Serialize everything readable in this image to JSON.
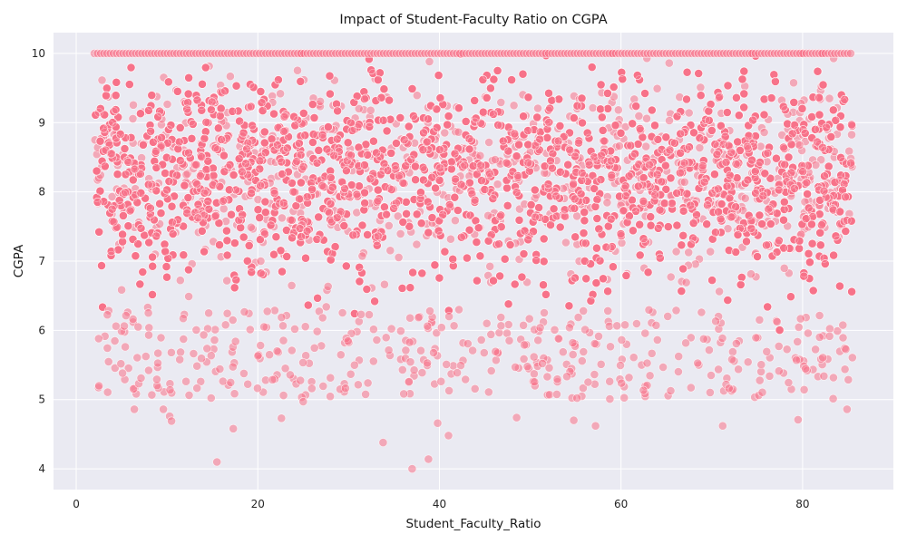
{
  "chart_data": {
    "type": "scatter",
    "title": "Impact of Student-Faculty Ratio on CGPA",
    "xlabel": "Student_Faculty_Ratio",
    "ylabel": "CGPA",
    "xlim": [
      -2.5,
      90
    ],
    "ylim": [
      3.7,
      10.3
    ],
    "xticks": [
      0,
      20,
      40,
      60,
      80
    ],
    "yticks": [
      4,
      5,
      6,
      7,
      8,
      9,
      10
    ],
    "grid": true,
    "legend": "none",
    "colors": {
      "point": "#f77189",
      "point_edge": "#ffffff",
      "background": "#eaeaf2",
      "grid": "#ffffff"
    },
    "series": [
      {
        "x_range": [
          2,
          85.5
        ],
        "y_range": [
          4.0,
          10.0
        ],
        "y_cap": 10.0,
        "dense_band": [
          6.0,
          10.0
        ],
        "notable_points": [
          {
            "x": 15.5,
            "y": 4.1
          },
          {
            "x": 37,
            "y": 4.0
          },
          {
            "x": 38.8,
            "y": 4.14
          },
          {
            "x": 33.8,
            "y": 4.38
          },
          {
            "x": 41,
            "y": 4.48
          },
          {
            "x": 39.8,
            "y": 4.66
          },
          {
            "x": 22.6,
            "y": 4.73
          },
          {
            "x": 17.3,
            "y": 4.58
          },
          {
            "x": 71.2,
            "y": 4.62
          },
          {
            "x": 79.5,
            "y": 4.71
          },
          {
            "x": 84.9,
            "y": 4.86
          },
          {
            "x": 57.2,
            "y": 4.62
          },
          {
            "x": 54.8,
            "y": 4.7
          },
          {
            "x": 48.5,
            "y": 4.74
          },
          {
            "x": 10.3,
            "y": 4.76
          },
          {
            "x": 10.5,
            "y": 4.69
          },
          {
            "x": 6.4,
            "y": 4.86
          },
          {
            "x": 9.6,
            "y": 4.86
          },
          {
            "x": 25,
            "y": 4.97
          },
          {
            "x": 2.5,
            "y": 5.2
          }
        ]
      }
    ]
  }
}
